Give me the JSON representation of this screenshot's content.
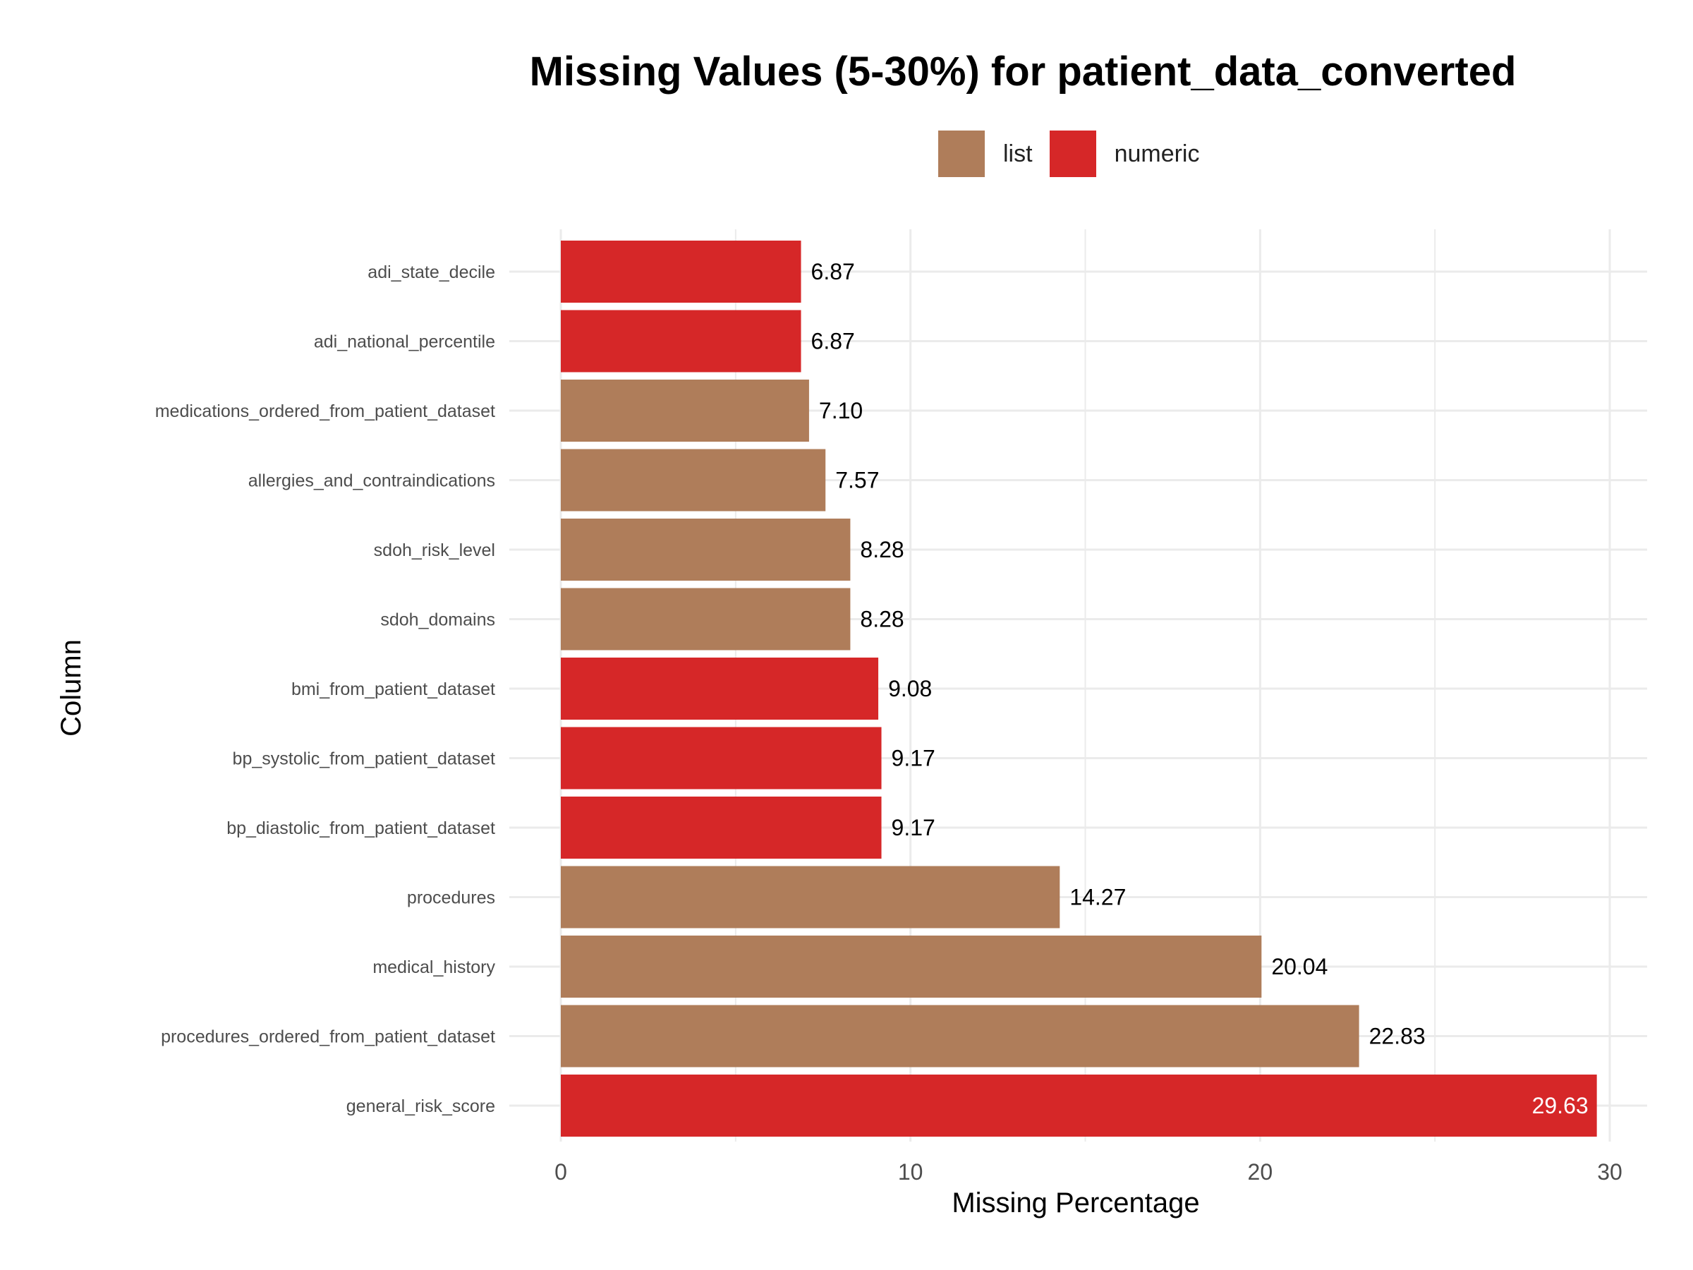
{
  "chart_data": {
    "type": "bar",
    "orientation": "horizontal",
    "title": "Missing Values (5-30%) for patient_data_converted",
    "xlabel": "Missing Percentage",
    "ylabel": "Column",
    "xlim": [
      0,
      30
    ],
    "x_ticks": [
      "0",
      "10",
      "20",
      "30"
    ],
    "grid": true,
    "legend_position": "top",
    "legend": [
      {
        "name": "list",
        "color": "#AF7D5A"
      },
      {
        "name": "numeric",
        "color": "#D62728"
      }
    ],
    "bars": [
      {
        "category": "adi_state_decile",
        "value": 6.87,
        "label": "6.87",
        "type": "numeric"
      },
      {
        "category": "adi_national_percentile",
        "value": 6.87,
        "label": "6.87",
        "type": "numeric"
      },
      {
        "category": "medications_ordered_from_patient_dataset",
        "value": 7.1,
        "label": "7.10",
        "type": "list"
      },
      {
        "category": "allergies_and_contraindications",
        "value": 7.57,
        "label": "7.57",
        "type": "list"
      },
      {
        "category": "sdoh_risk_level",
        "value": 8.28,
        "label": "8.28",
        "type": "list"
      },
      {
        "category": "sdoh_domains",
        "value": 8.28,
        "label": "8.28",
        "type": "list"
      },
      {
        "category": "bmi_from_patient_dataset",
        "value": 9.08,
        "label": "9.08",
        "type": "numeric"
      },
      {
        "category": "bp_systolic_from_patient_dataset",
        "value": 9.17,
        "label": "9.17",
        "type": "numeric"
      },
      {
        "category": "bp_diastolic_from_patient_dataset",
        "value": 9.17,
        "label": "9.17",
        "type": "numeric"
      },
      {
        "category": "procedures",
        "value": 14.27,
        "label": "14.27",
        "type": "list"
      },
      {
        "category": "medical_history",
        "value": 20.04,
        "label": "20.04",
        "type": "list"
      },
      {
        "category": "procedures_ordered_from_patient_dataset",
        "value": 22.83,
        "label": "22.83",
        "type": "list"
      },
      {
        "category": "general_risk_score",
        "value": 29.63,
        "label": "29.63",
        "type": "numeric"
      }
    ]
  }
}
